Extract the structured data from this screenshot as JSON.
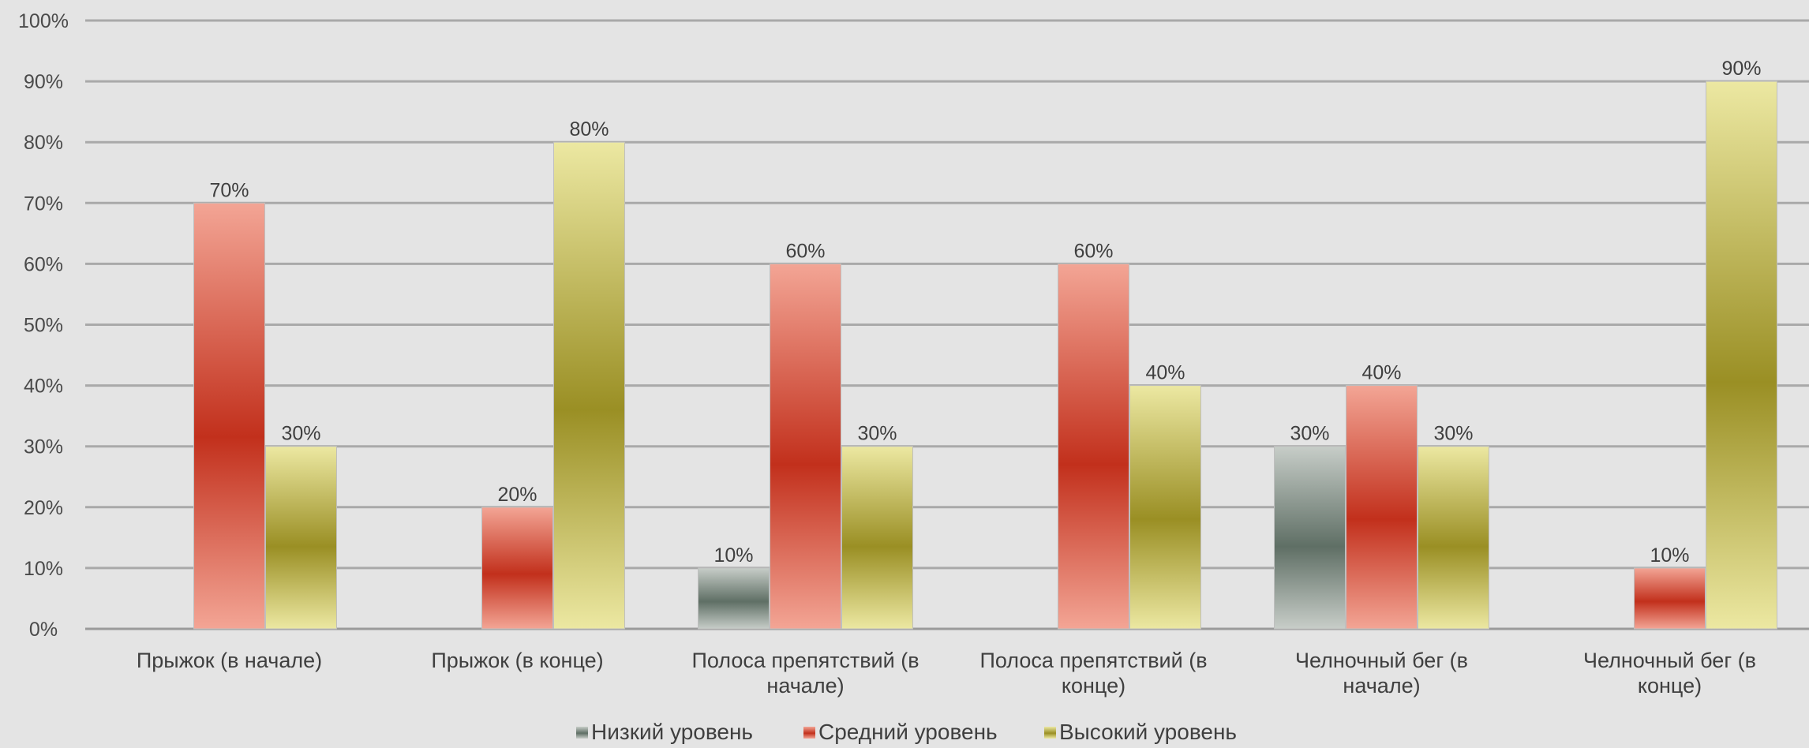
{
  "chart_data": {
    "type": "bar",
    "title": "",
    "xlabel": "",
    "ylabel": "",
    "ylim": [
      0,
      100
    ],
    "y_unit": "%",
    "y_ticks": [
      "0%",
      "10%",
      "20%",
      "30%",
      "40%",
      "50%",
      "60%",
      "70%",
      "80%",
      "90%",
      "100%"
    ],
    "grid": true,
    "legend_position": "bottom",
    "categories": [
      [
        "Прыжок (в начале)"
      ],
      [
        "Прыжок (в конце)"
      ],
      [
        "Полоса препятствий (в",
        "начале)"
      ],
      [
        "Полоса препятствий (в",
        "конце)"
      ],
      [
        "Челночный бег (в",
        "начале)"
      ],
      [
        "Челночный бег (в",
        "конце)"
      ]
    ],
    "series": [
      {
        "name": "Низкий уровень",
        "values": [
          0,
          0,
          10,
          0,
          30,
          0
        ],
        "color_top": "#c7cdc8",
        "color_bottom": "#5f6f65"
      },
      {
        "name": "Средний уровень",
        "values": [
          70,
          20,
          60,
          60,
          40,
          10
        ],
        "color_top": "#f3a595",
        "color_bottom": "#c2301c"
      },
      {
        "name": "Высокий уровень",
        "values": [
          30,
          80,
          30,
          40,
          30,
          90
        ],
        "color_top": "#ece8a2",
        "color_bottom": "#9a8f24"
      }
    ],
    "data_labels": [
      [
        null,
        null,
        "10%",
        null,
        "30%",
        null
      ],
      [
        "70%",
        "20%",
        "60%",
        "60%",
        "40%",
        "10%"
      ],
      [
        "30%",
        "80%",
        "30%",
        "40%",
        "30%",
        "90%"
      ]
    ]
  }
}
